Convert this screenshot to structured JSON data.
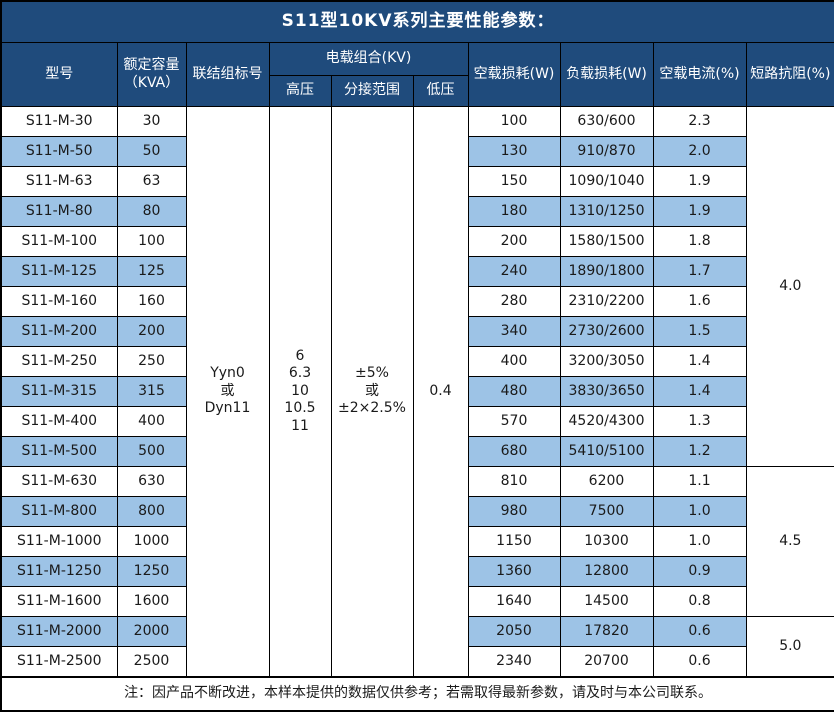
{
  "title": "S11型10KV系列主要性能参数：",
  "colors": {
    "header_bg": "#1F4B7C",
    "header_text": "#FFFFFF",
    "row_alt_bg": "#9DC3E6",
    "row_bg": "#FFFFFF",
    "border": "#000000",
    "text": "#1A1A1A"
  },
  "table": {
    "headers": {
      "model": "型号",
      "capacity_line1": "额定容量",
      "capacity_line2": "（KVA）",
      "connection": "联结组标号",
      "voltage_group": "电载组合(KV)",
      "hv": "高压",
      "tap": "分接范围",
      "lv": "低压",
      "no_load_loss": "空载损耗(W)",
      "load_loss": "负载损耗(W)",
      "no_load_current": "空载电流(%)",
      "impedance": "短路抗阻(%)"
    },
    "spans": {
      "connection_lines": [
        "Yyn0",
        "或",
        "Dyn11"
      ],
      "hv_lines": [
        "6",
        "6.3",
        "10",
        "10.5",
        "11"
      ],
      "tap_lines": [
        "±5%",
        "或",
        "±2×2.5%"
      ],
      "lv": "0.4"
    },
    "impedance_groups": [
      {
        "value": "4.0",
        "row_span": 12
      },
      {
        "value": "4.5",
        "row_span": 5
      },
      {
        "value": "5.0",
        "row_span": 2
      }
    ],
    "rows": [
      {
        "model": "S11-M-30",
        "kva": "30",
        "no_load_loss": "100",
        "load_loss": "630/600",
        "no_load_current": "2.3"
      },
      {
        "model": "S11-M-50",
        "kva": "50",
        "no_load_loss": "130",
        "load_loss": "910/870",
        "no_load_current": "2.0"
      },
      {
        "model": "S11-M-63",
        "kva": "63",
        "no_load_loss": "150",
        "load_loss": "1090/1040",
        "no_load_current": "1.9"
      },
      {
        "model": "S11-M-80",
        "kva": "80",
        "no_load_loss": "180",
        "load_loss": "1310/1250",
        "no_load_current": "1.9"
      },
      {
        "model": "S11-M-100",
        "kva": "100",
        "no_load_loss": "200",
        "load_loss": "1580/1500",
        "no_load_current": "1.8"
      },
      {
        "model": "S11-M-125",
        "kva": "125",
        "no_load_loss": "240",
        "load_loss": "1890/1800",
        "no_load_current": "1.7"
      },
      {
        "model": "S11-M-160",
        "kva": "160",
        "no_load_loss": "280",
        "load_loss": "2310/2200",
        "no_load_current": "1.6"
      },
      {
        "model": "S11-M-200",
        "kva": "200",
        "no_load_loss": "340",
        "load_loss": "2730/2600",
        "no_load_current": "1.5"
      },
      {
        "model": "S11-M-250",
        "kva": "250",
        "no_load_loss": "400",
        "load_loss": "3200/3050",
        "no_load_current": "1.4"
      },
      {
        "model": "S11-M-315",
        "kva": "315",
        "no_load_loss": "480",
        "load_loss": "3830/3650",
        "no_load_current": "1.4"
      },
      {
        "model": "S11-M-400",
        "kva": "400",
        "no_load_loss": "570",
        "load_loss": "4520/4300",
        "no_load_current": "1.3"
      },
      {
        "model": "S11-M-500",
        "kva": "500",
        "no_load_loss": "680",
        "load_loss": "5410/5100",
        "no_load_current": "1.2"
      },
      {
        "model": "S11-M-630",
        "kva": "630",
        "no_load_loss": "810",
        "load_loss": "6200",
        "no_load_current": "1.1"
      },
      {
        "model": "S11-M-800",
        "kva": "800",
        "no_load_loss": "980",
        "load_loss": "7500",
        "no_load_current": "1.0"
      },
      {
        "model": "S11-M-1000",
        "kva": "1000",
        "no_load_loss": "1150",
        "load_loss": "10300",
        "no_load_current": "1.0"
      },
      {
        "model": "S11-M-1250",
        "kva": "1250",
        "no_load_loss": "1360",
        "load_loss": "12800",
        "no_load_current": "0.9"
      },
      {
        "model": "S11-M-1600",
        "kva": "1600",
        "no_load_loss": "1640",
        "load_loss": "14500",
        "no_load_current": "0.8"
      },
      {
        "model": "S11-M-2000",
        "kva": "2000",
        "no_load_loss": "2050",
        "load_loss": "17820",
        "no_load_current": "0.6"
      },
      {
        "model": "S11-M-2500",
        "kva": "2500",
        "no_load_loss": "2340",
        "load_loss": "20700",
        "no_load_current": "0.6"
      }
    ]
  },
  "footer_note": "注：因产品不断改进，本样本提供的数据仅供参考；若需取得最新参数，请及时与本公司联系。"
}
